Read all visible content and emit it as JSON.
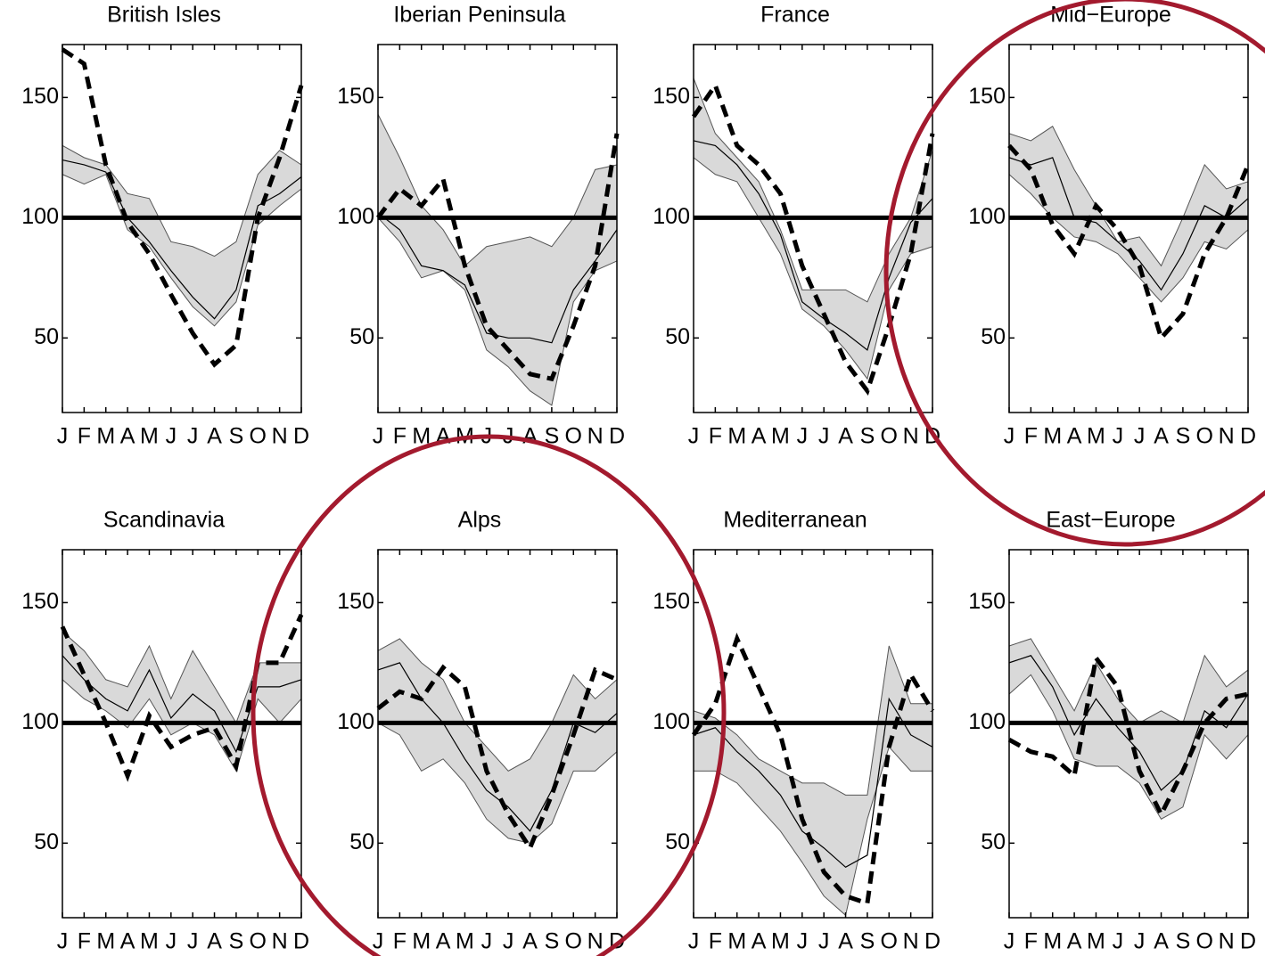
{
  "chart_data": [
    {
      "type": "line",
      "title": "British Isles",
      "categories": [
        "J",
        "F",
        "M",
        "A",
        "M",
        "J",
        "J",
        "A",
        "S",
        "O",
        "N",
        "D"
      ],
      "ylim": [
        19,
        172
      ],
      "yticks": [
        50,
        100,
        150
      ],
      "reference": 100,
      "band": {
        "color": "#d9d9d9",
        "upper": [
          130,
          125,
          122,
          110,
          108,
          90,
          88,
          84,
          90,
          118,
          128,
          122
        ],
        "lower": [
          118,
          114,
          118,
          95,
          88,
          75,
          63,
          55,
          65,
          97,
          105,
          112
        ]
      },
      "series": [
        {
          "color": "#000000",
          "dashed": false,
          "values": [
            124,
            122,
            119,
            100,
            90,
            78,
            67,
            58,
            70,
            105,
            110,
            117
          ]
        },
        {
          "color": "#000000",
          "dashed": true,
          "values": [
            170,
            164,
            122,
            98,
            85,
            68,
            52,
            39,
            47,
            100,
            125,
            155
          ]
        }
      ]
    },
    {
      "type": "line",
      "title": "Iberian Peninsula",
      "categories": [
        "J",
        "F",
        "M",
        "A",
        "M",
        "J",
        "J",
        "A",
        "S",
        "O",
        "N",
        "D"
      ],
      "ylim": [
        19,
        172
      ],
      "yticks": [
        50,
        100,
        150
      ],
      "reference": 100,
      "band": {
        "color": "#d9d9d9",
        "upper": [
          143,
          125,
          105,
          95,
          80,
          88,
          90,
          92,
          88,
          100,
          120,
          122
        ],
        "lower": [
          100,
          90,
          75,
          78,
          70,
          45,
          38,
          28,
          22,
          65,
          78,
          82
        ]
      },
      "series": [
        {
          "color": "#000000",
          "dashed": false,
          "values": [
            102,
            95,
            80,
            78,
            72,
            52,
            50,
            50,
            48,
            70,
            82,
            95
          ]
        },
        {
          "color": "#000000",
          "dashed": true,
          "values": [
            100,
            112,
            105,
            116,
            80,
            55,
            45,
            35,
            33,
            55,
            80,
            135
          ]
        }
      ]
    },
    {
      "type": "line",
      "title": "France",
      "categories": [
        "J",
        "F",
        "M",
        "A",
        "M",
        "J",
        "J",
        "A",
        "S",
        "O",
        "N",
        "D"
      ],
      "ylim": [
        19,
        172
      ],
      "yticks": [
        50,
        100,
        150
      ],
      "reference": 100,
      "band": {
        "color": "#d9d9d9",
        "upper": [
          158,
          135,
          125,
          115,
          95,
          70,
          70,
          70,
          65,
          85,
          100,
          128
        ],
        "lower": [
          125,
          118,
          115,
          100,
          85,
          62,
          55,
          45,
          33,
          70,
          85,
          88
        ]
      },
      "series": [
        {
          "color": "#000000",
          "dashed": false,
          "values": [
            132,
            130,
            122,
            110,
            93,
            65,
            58,
            52,
            45,
            75,
            98,
            108
          ]
        },
        {
          "color": "#000000",
          "dashed": true,
          "values": [
            142,
            155,
            130,
            122,
            110,
            80,
            60,
            40,
            28,
            55,
            85,
            135
          ]
        }
      ]
    },
    {
      "type": "line",
      "title": "Mid−Europe",
      "categories": [
        "J",
        "F",
        "M",
        "A",
        "M",
        "J",
        "J",
        "A",
        "S",
        "O",
        "N",
        "D"
      ],
      "ylim": [
        19,
        172
      ],
      "yticks": [
        50,
        100,
        150
      ],
      "reference": 100,
      "band": {
        "color": "#d9d9d9",
        "upper": [
          135,
          132,
          138,
          120,
          105,
          90,
          92,
          80,
          100,
          122,
          112,
          115
        ],
        "lower": [
          118,
          110,
          100,
          92,
          90,
          85,
          75,
          65,
          75,
          90,
          87,
          95
        ]
      },
      "series": [
        {
          "color": "#000000",
          "dashed": false,
          "values": [
            125,
            122,
            125,
            100,
            98,
            90,
            82,
            70,
            85,
            105,
            100,
            108
          ]
        },
        {
          "color": "#000000",
          "dashed": true,
          "values": [
            130,
            120,
            97,
            85,
            105,
            95,
            80,
            50,
            60,
            85,
            100,
            122
          ]
        }
      ]
    },
    {
      "type": "line",
      "title": "Scandinavia",
      "categories": [
        "J",
        "F",
        "M",
        "A",
        "M",
        "J",
        "J",
        "A",
        "S",
        "O",
        "N",
        "D"
      ],
      "ylim": [
        19,
        172
      ],
      "yticks": [
        50,
        100,
        150
      ],
      "reference": 100,
      "band": {
        "color": "#d9d9d9",
        "upper": [
          138,
          130,
          118,
          115,
          132,
          110,
          130,
          115,
          100,
          125,
          125,
          125
        ],
        "lower": [
          118,
          110,
          105,
          98,
          110,
          95,
          100,
          95,
          80,
          110,
          100,
          110
        ]
      },
      "series": [
        {
          "color": "#000000",
          "dashed": false,
          "values": [
            128,
            118,
            110,
            105,
            122,
            102,
            112,
            105,
            88,
            115,
            115,
            118
          ]
        },
        {
          "color": "#000000",
          "dashed": true,
          "values": [
            140,
            120,
            100,
            78,
            103,
            90,
            95,
            98,
            82,
            125,
            125,
            145
          ]
        }
      ]
    },
    {
      "type": "line",
      "title": "Alps",
      "categories": [
        "J",
        "F",
        "M",
        "A",
        "M",
        "J",
        "J",
        "A",
        "S",
        "O",
        "N",
        "D"
      ],
      "ylim": [
        19,
        172
      ],
      "yticks": [
        50,
        100,
        150
      ],
      "reference": 100,
      "band": {
        "color": "#d9d9d9",
        "upper": [
          130,
          135,
          125,
          118,
          100,
          90,
          80,
          85,
          100,
          120,
          110,
          118
        ],
        "lower": [
          100,
          95,
          80,
          85,
          75,
          60,
          52,
          50,
          58,
          80,
          80,
          88
        ]
      },
      "series": [
        {
          "color": "#000000",
          "dashed": false,
          "values": [
            122,
            125,
            110,
            100,
            85,
            72,
            65,
            55,
            72,
            100,
            96,
            104
          ]
        },
        {
          "color": "#000000",
          "dashed": true,
          "values": [
            106,
            113,
            110,
            123,
            115,
            80,
            62,
            48,
            70,
            95,
            122,
            118
          ]
        }
      ]
    },
    {
      "type": "line",
      "title": "Mediterranean",
      "categories": [
        "J",
        "F",
        "M",
        "A",
        "M",
        "J",
        "J",
        "A",
        "S",
        "O",
        "N",
        "D"
      ],
      "ylim": [
        19,
        172
      ],
      "yticks": [
        50,
        100,
        150
      ],
      "reference": 100,
      "band": {
        "color": "#d9d9d9",
        "upper": [
          105,
          102,
          95,
          85,
          80,
          75,
          75,
          70,
          70,
          132,
          108,
          108
        ],
        "lower": [
          80,
          80,
          75,
          65,
          55,
          42,
          28,
          20,
          60,
          90,
          80,
          80
        ]
      },
      "series": [
        {
          "color": "#000000",
          "dashed": false,
          "values": [
            95,
            98,
            88,
            80,
            70,
            55,
            48,
            40,
            45,
            110,
            95,
            90
          ]
        },
        {
          "color": "#000000",
          "dashed": true,
          "values": [
            95,
            108,
            135,
            115,
            95,
            60,
            38,
            28,
            25,
            90,
            120,
            105
          ]
        }
      ]
    },
    {
      "type": "line",
      "title": "East−Europe",
      "categories": [
        "J",
        "F",
        "M",
        "A",
        "M",
        "J",
        "J",
        "A",
        "S",
        "O",
        "N",
        "D"
      ],
      "ylim": [
        19,
        172
      ],
      "yticks": [
        50,
        100,
        150
      ],
      "reference": 100,
      "band": {
        "color": "#d9d9d9",
        "upper": [
          132,
          135,
          120,
          105,
          125,
          110,
          100,
          105,
          100,
          128,
          115,
          122
        ],
        "lower": [
          112,
          120,
          105,
          85,
          82,
          82,
          75,
          60,
          65,
          95,
          85,
          95
        ]
      },
      "series": [
        {
          "color": "#000000",
          "dashed": false,
          "values": [
            125,
            128,
            115,
            95,
            110,
            98,
            88,
            72,
            80,
            105,
            98,
            112
          ]
        },
        {
          "color": "#000000",
          "dashed": true,
          "values": [
            93,
            88,
            86,
            78,
            127,
            115,
            80,
            62,
            80,
            100,
            110,
            112
          ]
        }
      ]
    }
  ]
}
